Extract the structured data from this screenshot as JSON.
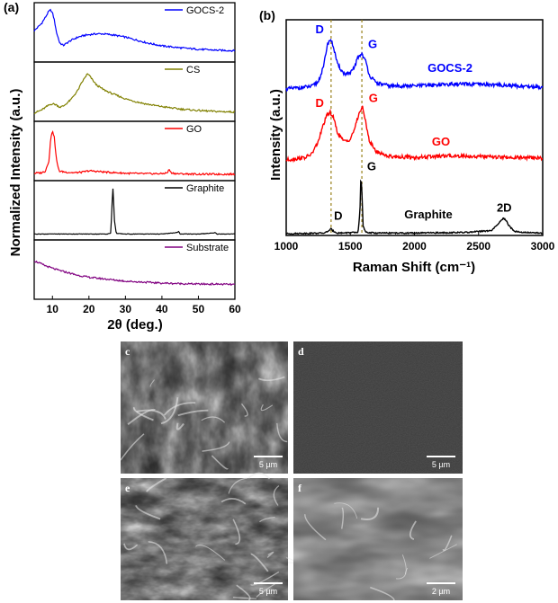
{
  "chart_data": [
    {
      "type": "line",
      "panel_label": "(a)",
      "xlabel": "2θ (deg.)",
      "ylabel": "Normalized Intensity (a.u.)",
      "xlim": [
        5,
        60
      ],
      "xticks": [
        10,
        20,
        30,
        40,
        50,
        60
      ],
      "series": [
        {
          "name": "GOCS-2",
          "color": "#0000ff",
          "x": [
            5,
            7,
            8,
            9,
            9.5,
            10,
            10.5,
            11,
            12,
            13,
            14,
            15,
            17,
            19,
            21,
            23,
            25,
            27,
            30,
            33,
            36,
            40,
            45,
            50,
            55,
            60
          ],
          "y": [
            0.55,
            0.7,
            0.82,
            0.95,
            0.98,
            0.92,
            0.78,
            0.55,
            0.3,
            0.25,
            0.3,
            0.35,
            0.42,
            0.46,
            0.48,
            0.49,
            0.48,
            0.46,
            0.42,
            0.36,
            0.3,
            0.24,
            0.2,
            0.17,
            0.15,
            0.14
          ]
        },
        {
          "name": "CS",
          "color": "#808000",
          "x": [
            5,
            7,
            9,
            10,
            11,
            12,
            13,
            15,
            17,
            18,
            19,
            19.5,
            20,
            21,
            22,
            24,
            26,
            28,
            30,
            33,
            36,
            40,
            45,
            50,
            55,
            60
          ],
          "y": [
            0.08,
            0.14,
            0.24,
            0.27,
            0.25,
            0.2,
            0.22,
            0.35,
            0.55,
            0.7,
            0.82,
            0.88,
            0.86,
            0.76,
            0.66,
            0.56,
            0.49,
            0.43,
            0.37,
            0.31,
            0.26,
            0.21,
            0.16,
            0.13,
            0.11,
            0.1
          ]
        },
        {
          "name": "GO",
          "color": "#ff0000",
          "x": [
            5,
            7,
            8,
            9,
            9.5,
            10,
            10.5,
            11,
            11.5,
            12,
            14,
            16,
            18,
            20,
            22,
            25,
            30,
            35,
            40,
            41.5,
            42,
            42.5,
            44,
            50,
            55,
            60
          ],
          "y": [
            0.06,
            0.07,
            0.1,
            0.3,
            0.75,
            0.95,
            0.8,
            0.4,
            0.18,
            0.1,
            0.08,
            0.07,
            0.08,
            0.11,
            0.1,
            0.08,
            0.06,
            0.05,
            0.05,
            0.07,
            0.14,
            0.07,
            0.05,
            0.04,
            0.04,
            0.04
          ]
        },
        {
          "name": "Graphite",
          "color": "#000000",
          "x": [
            5,
            15,
            25,
            26,
            26.3,
            26.6,
            27,
            27.5,
            30,
            40,
            44.3,
            44.6,
            45,
            50,
            54.4,
            54.6,
            55,
            60
          ],
          "y": [
            0.03,
            0.03,
            0.03,
            0.05,
            0.6,
            1.0,
            0.3,
            0.04,
            0.03,
            0.03,
            0.06,
            0.09,
            0.03,
            0.03,
            0.05,
            0.06,
            0.03,
            0.03
          ]
        },
        {
          "name": "Substrate",
          "color": "#800080",
          "x": [
            5,
            8,
            11,
            14,
            17,
            20,
            25,
            30,
            35,
            40,
            45,
            50,
            55,
            60
          ],
          "y": [
            0.7,
            0.6,
            0.52,
            0.46,
            0.4,
            0.36,
            0.32,
            0.28,
            0.26,
            0.24,
            0.23,
            0.22,
            0.22,
            0.21
          ]
        }
      ]
    },
    {
      "type": "line",
      "panel_label": "(b)",
      "xlabel": "Raman Shift (cm⁻¹)",
      "ylabel": "Intensity (a.u.)",
      "xlim": [
        1000,
        3000
      ],
      "xticks": [
        1000,
        1500,
        2000,
        2500,
        3000
      ],
      "reference_lines": [
        1350,
        1590
      ],
      "series": [
        {
          "name": "GOCS-2",
          "color": "#0000ff",
          "x": [
            1000,
            1200,
            1250,
            1290,
            1320,
            1345,
            1370,
            1400,
            1450,
            1500,
            1530,
            1560,
            1590,
            1620,
            1650,
            1700,
            1800,
            2000,
            2300,
            2600,
            2800,
            3000
          ],
          "y": [
            0.0,
            0.04,
            0.12,
            0.35,
            0.72,
            0.82,
            0.68,
            0.4,
            0.25,
            0.25,
            0.35,
            0.52,
            0.58,
            0.45,
            0.22,
            0.1,
            0.05,
            0.05,
            0.08,
            0.07,
            0.05,
            0.03
          ],
          "peak_labels": [
            {
              "text": "D",
              "x": 1345
            },
            {
              "text": "G",
              "x": 1590
            }
          ]
        },
        {
          "name": "GO",
          "color": "#ff0000",
          "x": [
            1000,
            1150,
            1200,
            1250,
            1290,
            1320,
            1345,
            1370,
            1400,
            1450,
            1500,
            1540,
            1570,
            1595,
            1620,
            1650,
            1700,
            1800,
            2000,
            2300,
            2600,
            2800,
            3000
          ],
          "y": [
            0.0,
            0.04,
            0.1,
            0.3,
            0.58,
            0.74,
            0.78,
            0.68,
            0.45,
            0.3,
            0.34,
            0.55,
            0.78,
            0.86,
            0.62,
            0.3,
            0.14,
            0.06,
            0.04,
            0.07,
            0.05,
            0.04,
            0.03
          ],
          "peak_labels": [
            {
              "text": "D",
              "x": 1345
            },
            {
              "text": "G",
              "x": 1595
            }
          ]
        },
        {
          "name": "Graphite",
          "color": "#000000",
          "x": [
            1000,
            1300,
            1340,
            1350,
            1360,
            1400,
            1560,
            1575,
            1582,
            1590,
            1600,
            1620,
            1700,
            2000,
            2400,
            2600,
            2650,
            2690,
            2710,
            2740,
            2780,
            2850,
            3000
          ],
          "y": [
            0.0,
            0.01,
            0.06,
            0.08,
            0.05,
            0.01,
            0.02,
            0.35,
            0.95,
            0.7,
            0.12,
            0.02,
            0.01,
            0.01,
            0.02,
            0.05,
            0.15,
            0.25,
            0.23,
            0.12,
            0.04,
            0.02,
            0.01
          ],
          "peak_labels": [
            {
              "text": "D",
              "x": 1350
            },
            {
              "text": "G",
              "x": 1582
            },
            {
              "text": "2D",
              "x": 2700
            }
          ]
        }
      ]
    }
  ],
  "sem_panels": [
    {
      "letter": "c",
      "scale_bar": "5 µm"
    },
    {
      "letter": "d",
      "scale_bar": "5 µm"
    },
    {
      "letter": "e",
      "scale_bar": "5 µm"
    },
    {
      "letter": "f",
      "scale_bar": "2 µm"
    }
  ]
}
